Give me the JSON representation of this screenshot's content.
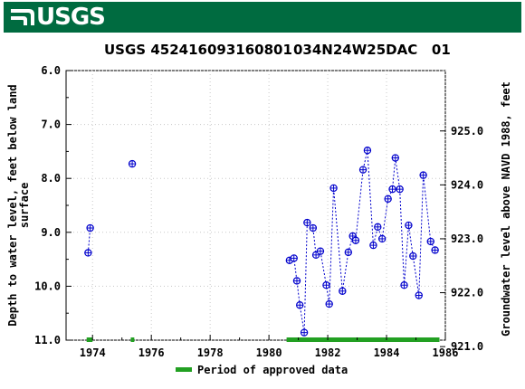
{
  "header": {
    "logo_text": "USGS"
  },
  "chart_data": {
    "type": "scatter",
    "title_site_no": "USGS 452416093160801",
    "title_station": "034N24W25DAC   01",
    "ylabel_left": "Depth to water level, feet below land surface",
    "ylabel_left_lines": [
      "Depth to water level, feet below land",
      "surface"
    ],
    "ylabel_right": "Groundwater level above NAVD 1988, feet",
    "x_ticks": [
      "1974",
      "1976",
      "1978",
      "1980",
      "1982",
      "1984",
      "1986"
    ],
    "x_tick_values": [
      1974,
      1976,
      1978,
      1980,
      1982,
      1984,
      1986
    ],
    "xlim": [
      1973.1,
      1986
    ],
    "y_left_ticks": [
      "6.0",
      "7.0",
      "8.0",
      "9.0",
      "10.0",
      "11.0"
    ],
    "y_left_tick_values": [
      6,
      7,
      8,
      9,
      10,
      11
    ],
    "ylim_left": [
      6,
      11
    ],
    "y_right_ticks": [
      "925.0",
      "924.0",
      "923.0",
      "922.0",
      "921.0"
    ],
    "y_right_tick_values": [
      925,
      924,
      923,
      922,
      921
    ],
    "right_axis_offset": 932.12,
    "marker_color": "#0000cc",
    "approved_color": "#22a022",
    "legend_label": "Period of approved data",
    "approved_periods": [
      [
        1973.8,
        1974.0
      ],
      [
        1975.3,
        1975.42
      ],
      [
        1980.6,
        1985.8
      ]
    ],
    "isolated_points": [
      {
        "x": 1973.85,
        "y": 9.38
      },
      {
        "x": 1973.92,
        "y": 8.92
      },
      {
        "x": 1975.35,
        "y": 7.73
      }
    ],
    "connected_series": [
      {
        "x": 1980.7,
        "y": 9.52
      },
      {
        "x": 1980.85,
        "y": 9.48
      },
      {
        "x": 1980.95,
        "y": 9.9
      },
      {
        "x": 1981.05,
        "y": 10.35
      },
      {
        "x": 1981.2,
        "y": 10.86
      },
      {
        "x": 1981.3,
        "y": 8.82
      },
      {
        "x": 1981.5,
        "y": 8.92
      },
      {
        "x": 1981.6,
        "y": 9.42
      },
      {
        "x": 1981.75,
        "y": 9.35
      },
      {
        "x": 1981.95,
        "y": 9.98
      },
      {
        "x": 1982.05,
        "y": 10.33
      },
      {
        "x": 1982.2,
        "y": 8.18
      },
      {
        "x": 1982.5,
        "y": 10.09
      },
      {
        "x": 1982.7,
        "y": 9.37
      },
      {
        "x": 1982.85,
        "y": 9.07
      },
      {
        "x": 1982.95,
        "y": 9.15
      },
      {
        "x": 1983.2,
        "y": 7.84
      },
      {
        "x": 1983.35,
        "y": 7.48
      },
      {
        "x": 1983.55,
        "y": 9.24
      },
      {
        "x": 1983.7,
        "y": 8.9
      },
      {
        "x": 1983.85,
        "y": 9.12
      },
      {
        "x": 1984.05,
        "y": 8.38
      },
      {
        "x": 1984.2,
        "y": 8.2
      },
      {
        "x": 1984.3,
        "y": 7.62
      },
      {
        "x": 1984.45,
        "y": 8.2
      },
      {
        "x": 1984.6,
        "y": 9.98
      },
      {
        "x": 1984.75,
        "y": 8.87
      },
      {
        "x": 1984.9,
        "y": 9.44
      },
      {
        "x": 1985.1,
        "y": 10.17
      },
      {
        "x": 1985.25,
        "y": 7.94
      },
      {
        "x": 1985.5,
        "y": 9.17
      },
      {
        "x": 1985.65,
        "y": 9.33
      }
    ]
  }
}
